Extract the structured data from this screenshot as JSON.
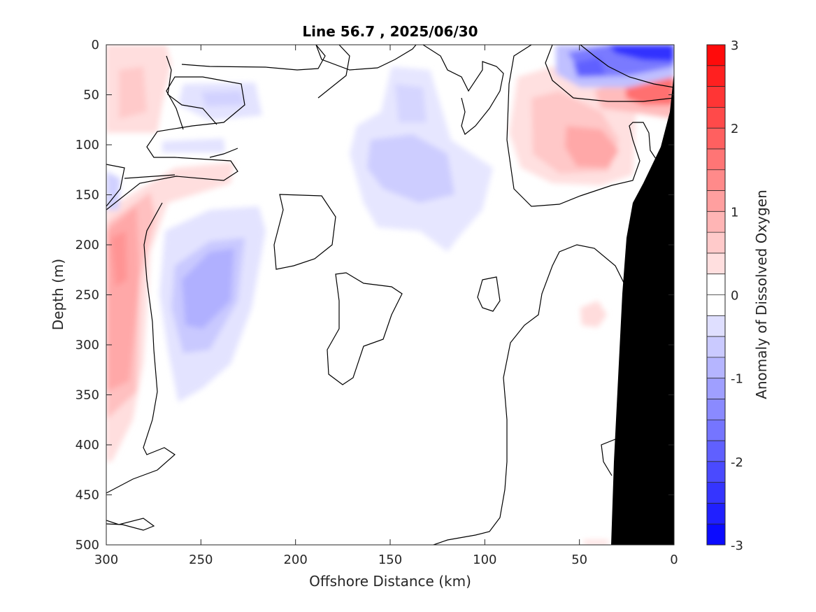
{
  "chart_data": {
    "type": "heatmap",
    "subtype": "filled-contour section",
    "title": "Line 56.7 , 2025/06/30",
    "xlabel": "Offshore Distance (km)",
    "ylabel": "Depth (m)",
    "xlim": [
      300,
      0
    ],
    "ylim": [
      0,
      500
    ],
    "x_reversed": true,
    "y_reversed": true,
    "xticks": [
      300,
      250,
      200,
      150,
      100,
      50,
      0
    ],
    "yticks": [
      0,
      50,
      100,
      150,
      200,
      250,
      300,
      350,
      400,
      450,
      500
    ],
    "colorbar": {
      "label": "Anomaly of Dissolved Oxygen",
      "limits": [
        -3,
        3
      ],
      "ticks": [
        3,
        2,
        1,
        0,
        -1,
        -2,
        -3
      ],
      "levels": 24,
      "colormap": "blue-white-red",
      "negative_color": "#0000ff",
      "positive_color": "#ff0000",
      "neutral_color": "#ffffff"
    },
    "land_color": "#000000",
    "contour_zero_line_color": "#000000",
    "features": [
      {
        "name": "surface-low-nearshore",
        "sign": "negative",
        "x": [
          40,
          0
        ],
        "depth": [
          0,
          40
        ],
        "peak": -2.8
      },
      {
        "name": "subsurface-high-nearshore",
        "sign": "positive",
        "x": [
          20,
          0
        ],
        "depth": [
          30,
          80
        ],
        "peak": 2.0
      },
      {
        "name": "high-50-90km",
        "sign": "positive",
        "x": [
          85,
          25
        ],
        "depth": [
          50,
          150
        ],
        "peak": 1.2
      },
      {
        "name": "low-200-260km",
        "sign": "negative",
        "x": [
          275,
          205
        ],
        "depth": [
          160,
          360
        ],
        "peak": -0.9
      },
      {
        "name": "high-offshore-edge",
        "sign": "positive",
        "x": [
          300,
          250
        ],
        "depth": [
          120,
          420
        ],
        "peak": 1.0
      },
      {
        "name": "low-center-upper",
        "sign": "negative",
        "x": [
          175,
          90
        ],
        "depth": [
          40,
          200
        ],
        "peak": -0.6
      },
      {
        "name": "high-offshore-surface",
        "sign": "positive",
        "x": [
          300,
          260
        ],
        "depth": [
          0,
          85
        ],
        "peak": 0.5
      },
      {
        "name": "low-upper-240km",
        "sign": "negative",
        "x": [
          270,
          190
        ],
        "depth": [
          30,
          110
        ],
        "peak": -0.4
      }
    ]
  }
}
